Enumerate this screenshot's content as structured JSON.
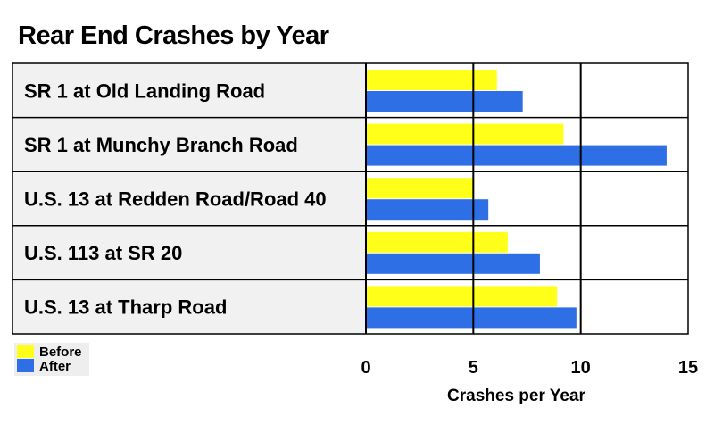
{
  "chart_data": {
    "type": "bar",
    "orientation": "horizontal",
    "title": "Rear End Crashes by Year",
    "xlabel": "Crashes per Year",
    "ylabel": "",
    "xlim": [
      0,
      15
    ],
    "xticks": [
      "0",
      "5",
      "10",
      "15"
    ],
    "xtick_values": [
      0,
      5,
      10,
      15
    ],
    "grid": true,
    "legend_position": "bottom-left",
    "categories": [
      "SR 1 at Old Landing Road",
      "SR 1 at Munchy Branch Road",
      "U.S. 13 at Redden Road/Road 40",
      "U.S. 113 at SR 20",
      "U.S. 13 at Tharp Road"
    ],
    "series": [
      {
        "name": "Before",
        "color": "#ffff1a",
        "values": [
          6.1,
          9.2,
          5.0,
          6.6,
          8.9
        ]
      },
      {
        "name": "After",
        "color": "#2f6fe6",
        "values": [
          7.3,
          14.0,
          5.7,
          8.1,
          9.8
        ]
      }
    ]
  }
}
